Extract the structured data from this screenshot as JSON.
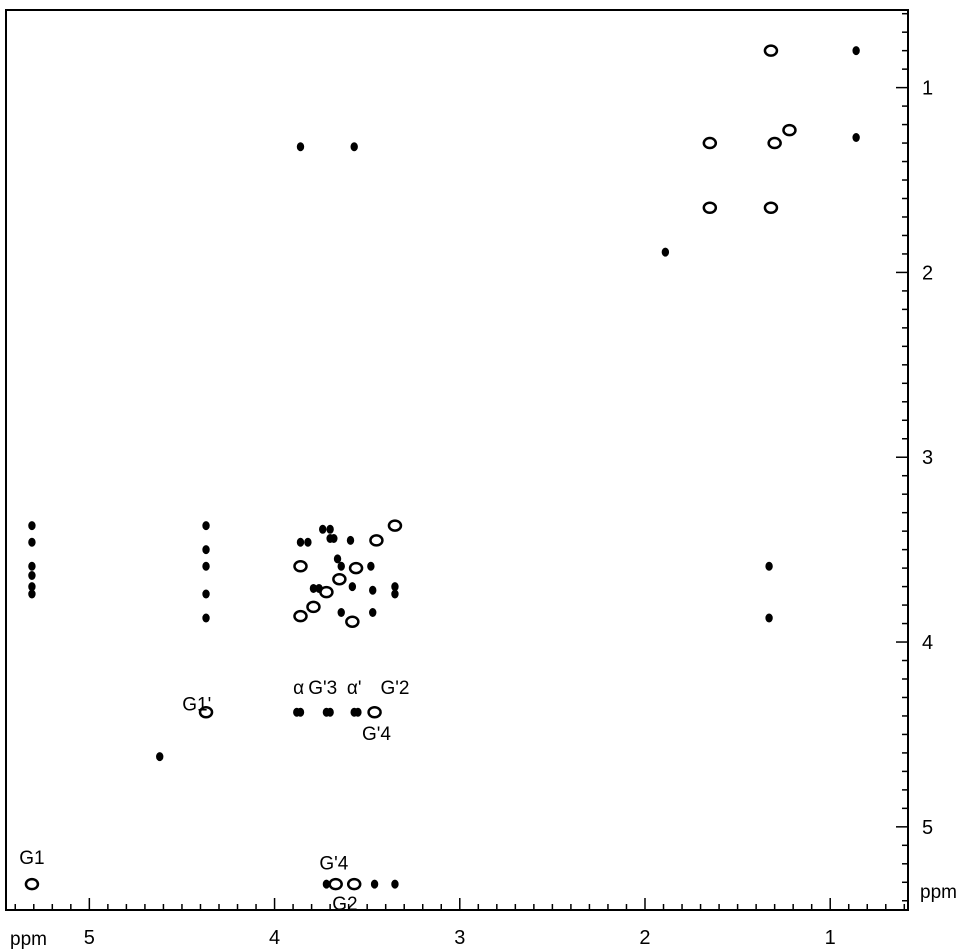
{
  "chart_data": {
    "type": "scatter",
    "title": "",
    "xlabel": "ppm",
    "ylabel": "ppm",
    "xlim": [
      5.45,
      0.58
    ],
    "ylim": [
      0.58,
      5.45
    ],
    "x_ticks": [
      {
        "value": 5,
        "label": "5"
      },
      {
        "value": 4,
        "label": "4"
      },
      {
        "value": 3,
        "label": "3"
      },
      {
        "value": 2,
        "label": "2"
      },
      {
        "value": 1,
        "label": "1"
      }
    ],
    "y_ticks": [
      {
        "value": 1,
        "label": "1"
      },
      {
        "value": 2,
        "label": "2"
      },
      {
        "value": 3,
        "label": "3"
      },
      {
        "value": 4,
        "label": "4"
      },
      {
        "value": 5,
        "label": "5"
      }
    ],
    "grid": false,
    "annotations": [
      {
        "label": "G1",
        "x": 5.31,
        "y": 5.2
      },
      {
        "label": "G1'",
        "x": 4.42,
        "y": 4.37
      },
      {
        "label": "α",
        "x": 3.87,
        "y": 4.28
      },
      {
        "label": "G'3",
        "x": 3.74,
        "y": 4.28
      },
      {
        "label": "α'",
        "x": 3.57,
        "y": 4.28
      },
      {
        "label": "G'2",
        "x": 3.35,
        "y": 4.28
      },
      {
        "label": "G'4",
        "x": 3.45,
        "y": 4.53
      },
      {
        "label": "G'4",
        "x": 3.68,
        "y": 5.23
      },
      {
        "label": "G2",
        "x": 3.62,
        "y": 5.45
      }
    ],
    "series": [
      {
        "type": "cross-peaks",
        "points": [
          {
            "x": 1.32,
            "y": 0.8,
            "style": "open"
          },
          {
            "x": 0.86,
            "y": 0.8,
            "style": "filled"
          },
          {
            "x": 1.3,
            "y": 1.3,
            "style": "open"
          },
          {
            "x": 1.22,
            "y": 1.23,
            "style": "open"
          },
          {
            "x": 0.86,
            "y": 1.27,
            "style": "filled"
          },
          {
            "x": 1.65,
            "y": 1.3,
            "style": "open"
          },
          {
            "x": 3.86,
            "y": 1.32,
            "style": "filled"
          },
          {
            "x": 3.57,
            "y": 1.32,
            "style": "filled"
          },
          {
            "x": 1.65,
            "y": 1.65,
            "style": "open"
          },
          {
            "x": 1.32,
            "y": 1.65,
            "style": "open"
          },
          {
            "x": 1.89,
            "y": 1.89,
            "style": "filled"
          },
          {
            "x": 3.35,
            "y": 3.37,
            "style": "open"
          },
          {
            "x": 3.45,
            "y": 3.45,
            "style": "open"
          },
          {
            "x": 3.56,
            "y": 3.6,
            "style": "open"
          },
          {
            "x": 3.65,
            "y": 3.66,
            "style": "open"
          },
          {
            "x": 3.72,
            "y": 3.73,
            "style": "open"
          },
          {
            "x": 3.79,
            "y": 3.81,
            "style": "open"
          },
          {
            "x": 3.86,
            "y": 3.86,
            "style": "open"
          },
          {
            "x": 3.86,
            "y": 3.59,
            "style": "open"
          },
          {
            "x": 3.58,
            "y": 3.89,
            "style": "open"
          },
          {
            "x": 3.86,
            "y": 3.46,
            "style": "filled"
          },
          {
            "x": 3.82,
            "y": 3.46,
            "style": "filled"
          },
          {
            "x": 3.7,
            "y": 3.44,
            "style": "filled"
          },
          {
            "x": 3.68,
            "y": 3.44,
            "style": "filled"
          },
          {
            "x": 3.59,
            "y": 3.45,
            "style": "filled"
          },
          {
            "x": 3.74,
            "y": 3.39,
            "style": "filled"
          },
          {
            "x": 3.7,
            "y": 3.39,
            "style": "filled"
          },
          {
            "x": 3.66,
            "y": 3.55,
            "style": "filled"
          },
          {
            "x": 3.64,
            "y": 3.59,
            "style": "filled"
          },
          {
            "x": 3.48,
            "y": 3.59,
            "style": "filled"
          },
          {
            "x": 3.79,
            "y": 3.71,
            "style": "filled"
          },
          {
            "x": 3.76,
            "y": 3.71,
            "style": "filled"
          },
          {
            "x": 3.58,
            "y": 3.7,
            "style": "filled"
          },
          {
            "x": 3.47,
            "y": 3.72,
            "style": "filled"
          },
          {
            "x": 3.35,
            "y": 3.7,
            "style": "filled"
          },
          {
            "x": 3.35,
            "y": 3.74,
            "style": "filled"
          },
          {
            "x": 3.64,
            "y": 3.84,
            "style": "filled"
          },
          {
            "x": 3.47,
            "y": 3.84,
            "style": "filled"
          },
          {
            "x": 1.33,
            "y": 3.59,
            "style": "filled"
          },
          {
            "x": 1.33,
            "y": 3.87,
            "style": "filled"
          },
          {
            "x": 5.31,
            "y": 3.59,
            "style": "filled"
          },
          {
            "x": 5.31,
            "y": 3.64,
            "style": "filled"
          },
          {
            "x": 5.31,
            "y": 3.7,
            "style": "filled"
          },
          {
            "x": 5.31,
            "y": 3.74,
            "style": "filled"
          },
          {
            "x": 5.31,
            "y": 3.46,
            "style": "filled"
          },
          {
            "x": 5.31,
            "y": 3.37,
            "style": "filled"
          },
          {
            "x": 4.37,
            "y": 3.37,
            "style": "filled"
          },
          {
            "x": 4.37,
            "y": 3.5,
            "style": "filled"
          },
          {
            "x": 4.37,
            "y": 3.59,
            "style": "filled"
          },
          {
            "x": 4.37,
            "y": 3.74,
            "style": "filled"
          },
          {
            "x": 4.37,
            "y": 3.87,
            "style": "filled"
          },
          {
            "x": 3.88,
            "y": 4.38,
            "style": "filled"
          },
          {
            "x": 3.86,
            "y": 4.38,
            "style": "filled"
          },
          {
            "x": 3.72,
            "y": 4.38,
            "style": "filled"
          },
          {
            "x": 3.7,
            "y": 4.38,
            "style": "filled"
          },
          {
            "x": 3.57,
            "y": 4.38,
            "style": "filled"
          },
          {
            "x": 3.55,
            "y": 4.38,
            "style": "filled"
          },
          {
            "x": 3.46,
            "y": 4.38,
            "style": "open"
          },
          {
            "x": 4.37,
            "y": 4.38,
            "style": "open"
          },
          {
            "x": 4.62,
            "y": 4.62,
            "style": "filled"
          },
          {
            "x": 5.31,
            "y": 5.31,
            "style": "open"
          },
          {
            "x": 3.67,
            "y": 5.31,
            "style": "open"
          },
          {
            "x": 3.57,
            "y": 5.31,
            "style": "open"
          },
          {
            "x": 3.72,
            "y": 5.31,
            "style": "filled"
          },
          {
            "x": 3.46,
            "y": 5.31,
            "style": "filled"
          },
          {
            "x": 3.35,
            "y": 5.31,
            "style": "filled"
          }
        ]
      }
    ]
  }
}
